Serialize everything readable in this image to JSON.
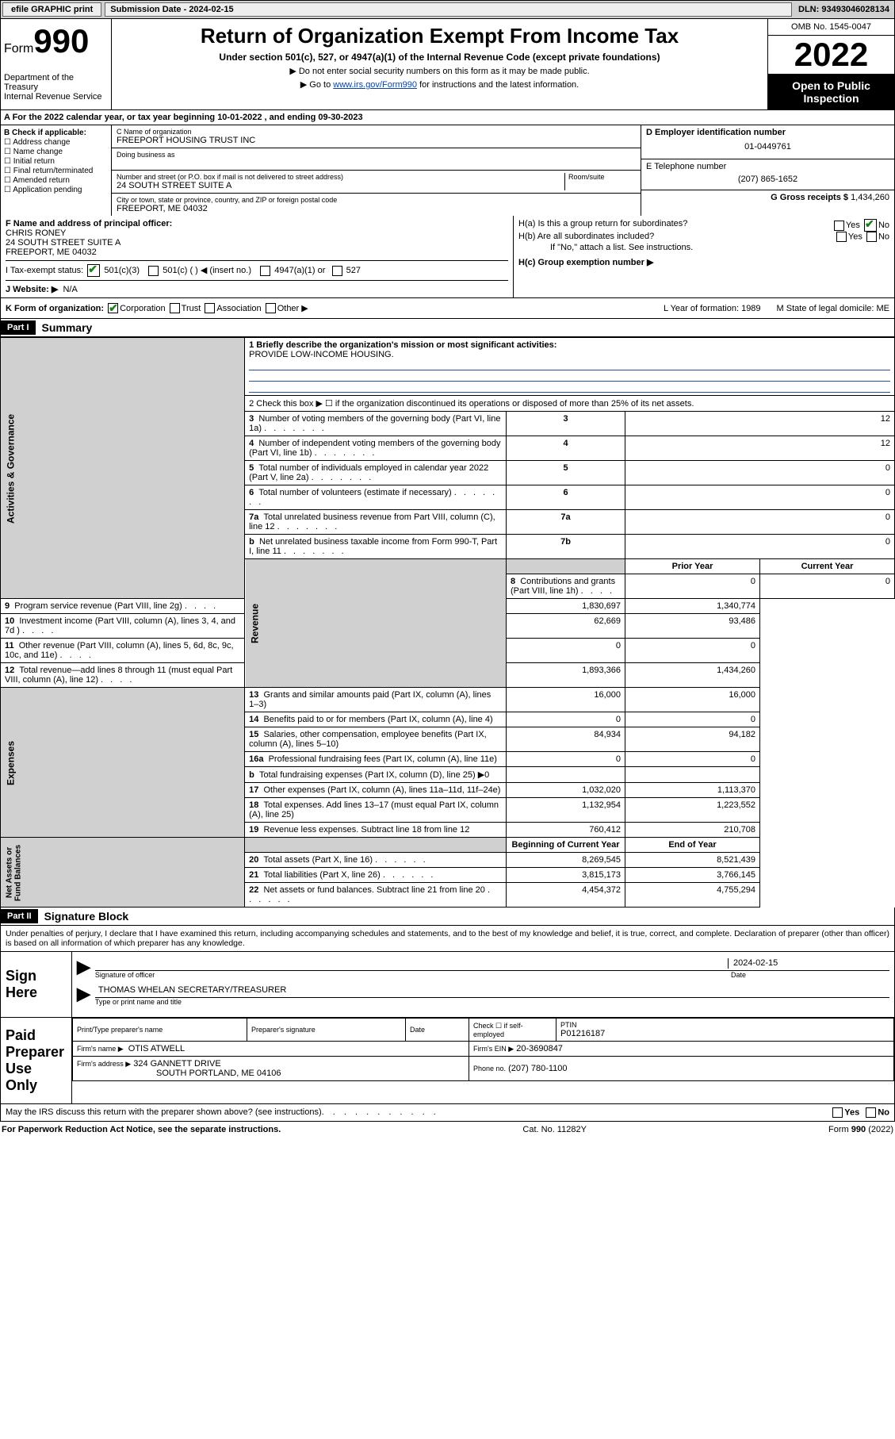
{
  "topbar": {
    "print_label": "efile GRAPHIC print",
    "subm_label": "Submission Date - 2024-02-15",
    "dln": "DLN: 93493046028134"
  },
  "header": {
    "form_small": "Form",
    "form_big": "990",
    "title": "Return of Organization Exempt From Income Tax",
    "subtitle": "Under section 501(c), 527, or 4947(a)(1) of the Internal Revenue Code (except private foundations)",
    "note1": "▶ Do not enter social security numbers on this form as it may be made public.",
    "note2_pre": "▶ Go to ",
    "note2_link": "www.irs.gov/Form990",
    "note2_post": " for instructions and the latest information.",
    "dept": "Department of the Treasury\nInternal Revenue Service",
    "omb": "OMB No. 1545-0047",
    "year": "2022",
    "open": "Open to Public Inspection"
  },
  "rowA": "A For the 2022 calendar year, or tax year beginning 10-01-2022     , and ending 09-30-2023",
  "colB": {
    "label": "B Check if applicable:",
    "items": [
      "Address change",
      "Name change",
      "Initial return",
      "Final return/terminated",
      "Amended return",
      "Application pending"
    ]
  },
  "colC": {
    "name_label": "C Name of organization",
    "name": "FREEPORT HOUSING TRUST INC",
    "dba_label": "Doing business as",
    "addr_label": "Number and street (or P.O. box if mail is not delivered to street address)",
    "room_label": "Room/suite",
    "addr": "24 SOUTH STREET SUITE A",
    "city_label": "City or town, state or province, country, and ZIP or foreign postal code",
    "city": "FREEPORT, ME  04032"
  },
  "colD": {
    "ein_label": "D Employer identification number",
    "ein": "01-0449761",
    "tel_label": "E Telephone number",
    "tel": "(207) 865-1652",
    "gross_label": "G Gross receipts $",
    "gross": "1,434,260"
  },
  "rowF": {
    "label": "F  Name and address of principal officer:",
    "name": "CHRIS RONEY",
    "addr1": "24 SOUTH STREET SUITE A",
    "addr2": "FREEPORT, ME  04032"
  },
  "rowH": {
    "a": "H(a)  Is this a group return for subordinates?",
    "b": "H(b)  Are all subordinates included?",
    "note": "If \"No,\" attach a list. See instructions.",
    "c": "H(c)  Group exemption number ▶",
    "yes": "Yes",
    "no": "No"
  },
  "rowI": {
    "label": "I    Tax-exempt status:",
    "o1": "501(c)(3)",
    "o2": "501(c) (   ) ◀ (insert no.)",
    "o3": "4947(a)(1) or",
    "o4": "527"
  },
  "rowJ": {
    "label": "J    Website: ▶",
    "val": "N/A"
  },
  "rowK": {
    "label": "K Form of organization:",
    "opts": [
      "Corporation",
      "Trust",
      "Association",
      "Other ▶"
    ],
    "l": "L Year of formation: 1989",
    "m": "M State of legal domicile: ME"
  },
  "part1": {
    "tag": "Part I",
    "title": "Summary"
  },
  "summary": {
    "line1_label": "1   Briefly describe the organization's mission or most significant activities:",
    "line1_val": "PROVIDE LOW-INCOME HOUSING.",
    "line2": "2    Check this box ▶ ☐  if the organization discontinued its operations or disposed of more than 25% of its net assets.",
    "sections": [
      {
        "label": "Activities & Governance",
        "rows": [
          {
            "n": "3",
            "t": "Number of voting members of the governing body (Part VI, line 1a)",
            "c": "3",
            "py": "",
            "cy": "12",
            "single": true
          },
          {
            "n": "4",
            "t": "Number of independent voting members of the governing body (Part VI, line 1b)",
            "c": "4",
            "py": "",
            "cy": "12",
            "single": true
          },
          {
            "n": "5",
            "t": "Total number of individuals employed in calendar year 2022 (Part V, line 2a)",
            "c": "5",
            "py": "",
            "cy": "0",
            "single": true
          },
          {
            "n": "6",
            "t": "Total number of volunteers (estimate if necessary)",
            "c": "6",
            "py": "",
            "cy": "0",
            "single": true
          },
          {
            "n": "7a",
            "t": "Total unrelated business revenue from Part VIII, column (C), line 12",
            "c": "7a",
            "py": "",
            "cy": "0",
            "single": true
          },
          {
            "n": "b",
            "t": "Net unrelated business taxable income from Form 990-T, Part I, line 11",
            "c": "7b",
            "py": "",
            "cy": "0",
            "single": true
          }
        ]
      },
      {
        "label": "Revenue",
        "header": true,
        "rows": [
          {
            "n": "8",
            "t": "Contributions and grants (Part VIII, line 1h)",
            "py": "0",
            "cy": "0"
          },
          {
            "n": "9",
            "t": "Program service revenue (Part VIII, line 2g)",
            "py": "1,830,697",
            "cy": "1,340,774"
          },
          {
            "n": "10",
            "t": "Investment income (Part VIII, column (A), lines 3, 4, and 7d )",
            "py": "62,669",
            "cy": "93,486"
          },
          {
            "n": "11",
            "t": "Other revenue (Part VIII, column (A), lines 5, 6d, 8c, 9c, 10c, and 11e)",
            "py": "0",
            "cy": "0"
          },
          {
            "n": "12",
            "t": "Total revenue—add lines 8 through 11 (must equal Part VIII, column (A), line 12)",
            "py": "1,893,366",
            "cy": "1,434,260"
          }
        ]
      },
      {
        "label": "Expenses",
        "rows": [
          {
            "n": "13",
            "t": "Grants and similar amounts paid (Part IX, column (A), lines 1–3)",
            "py": "16,000",
            "cy": "16,000"
          },
          {
            "n": "14",
            "t": "Benefits paid to or for members (Part IX, column (A), line 4)",
            "py": "0",
            "cy": "0"
          },
          {
            "n": "15",
            "t": "Salaries, other compensation, employee benefits (Part IX, column (A), lines 5–10)",
            "py": "84,934",
            "cy": "94,182"
          },
          {
            "n": "16a",
            "t": "Professional fundraising fees (Part IX, column (A), line 11e)",
            "py": "0",
            "cy": "0"
          },
          {
            "n": "b",
            "t": "Total fundraising expenses (Part IX, column (D), line 25) ▶0",
            "py": "",
            "cy": "",
            "shaded": true
          },
          {
            "n": "17",
            "t": "Other expenses (Part IX, column (A), lines 11a–11d, 11f–24e)",
            "py": "1,032,020",
            "cy": "1,113,370"
          },
          {
            "n": "18",
            "t": "Total expenses. Add lines 13–17 (must equal Part IX, column (A), line 25)",
            "py": "1,132,954",
            "cy": "1,223,552"
          },
          {
            "n": "19",
            "t": "Revenue less expenses. Subtract line 18 from line 12",
            "py": "760,412",
            "cy": "210,708"
          }
        ]
      },
      {
        "label": "Net Assets or Fund Balances",
        "header2": true,
        "rows": [
          {
            "n": "20",
            "t": "Total assets (Part X, line 16)",
            "py": "8,269,545",
            "cy": "8,521,439"
          },
          {
            "n": "21",
            "t": "Total liabilities (Part X, line 26)",
            "py": "3,815,173",
            "cy": "3,766,145"
          },
          {
            "n": "22",
            "t": "Net assets or fund balances. Subtract line 21 from line 20",
            "py": "4,454,372",
            "cy": "4,755,294"
          }
        ]
      }
    ],
    "col_py": "Prior Year",
    "col_cy": "Current Year",
    "col_boy": "Beginning of Current Year",
    "col_eoy": "End of Year"
  },
  "part2": {
    "tag": "Part II",
    "title": "Signature Block"
  },
  "sig": {
    "decl": "Under penalties of perjury, I declare that I have examined this return, including accompanying schedules and statements, and to the best of my knowledge and belief, it is true, correct, and complete. Declaration of preparer (other than officer) is based on all information of which preparer has any knowledge.",
    "sign_here": "Sign Here",
    "sig_officer": "Signature of officer",
    "date_label": "Date",
    "date": "2024-02-15",
    "name": "THOMAS WHELAN  SECRETARY/TREASURER",
    "name_label": "Type or print name and title",
    "paid": "Paid Preparer Use Only",
    "pp_name_label": "Print/Type preparer's name",
    "pp_sig_label": "Preparer's signature",
    "pp_date_label": "Date",
    "pp_check": "Check ☐ if self-employed",
    "ptin_label": "PTIN",
    "ptin": "P01216187",
    "firm_name_label": "Firm's name      ▶",
    "firm_name": "OTIS ATWELL",
    "firm_ein_label": "Firm's EIN ▶",
    "firm_ein": "20-3690847",
    "firm_addr_label": "Firm's address ▶",
    "firm_addr1": "324 GANNETT DRIVE",
    "firm_addr2": "SOUTH PORTLAND, ME  04106",
    "phone_label": "Phone no.",
    "phone": "(207) 780-1100",
    "may": "May the IRS discuss this return with the preparer shown above? (see instructions)"
  },
  "footer": {
    "left": "For Paperwork Reduction Act Notice, see the separate instructions.",
    "mid": "Cat. No. 11282Y",
    "right": "Form 990 (2022)"
  }
}
